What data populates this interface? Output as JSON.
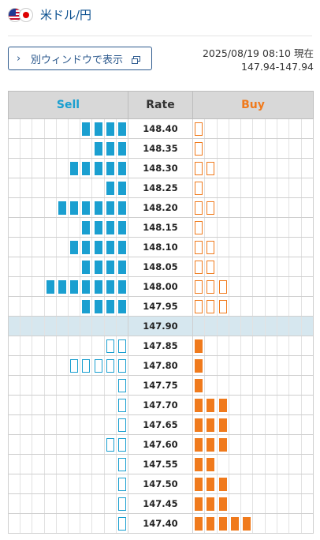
{
  "header": {
    "pair": "米ドル/円"
  },
  "toolbar": {
    "window_button_label": "別ウィンドウで表示"
  },
  "quote": {
    "timestamp": "2025/08/19 08:10 現在",
    "range": "147.94-147.94"
  },
  "columns": {
    "sell": "Sell",
    "rate": "Rate",
    "buy": "Buy"
  },
  "colors": {
    "sell": "#1a9fd0",
    "buy": "#f07a1c",
    "current_row": "#d6e7ef"
  },
  "current_rate": "147.90",
  "rows": [
    {
      "rate": "148.40",
      "sell": 4,
      "sell_type": "fill",
      "buy": 1,
      "buy_type": "empty"
    },
    {
      "rate": "148.35",
      "sell": 3,
      "sell_type": "fill",
      "buy": 1,
      "buy_type": "empty"
    },
    {
      "rate": "148.30",
      "sell": 5,
      "sell_type": "fill",
      "buy": 2,
      "buy_type": "empty"
    },
    {
      "rate": "148.25",
      "sell": 2,
      "sell_type": "fill",
      "buy": 1,
      "buy_type": "empty"
    },
    {
      "rate": "148.20",
      "sell": 6,
      "sell_type": "fill",
      "buy": 2,
      "buy_type": "empty"
    },
    {
      "rate": "148.15",
      "sell": 4,
      "sell_type": "fill",
      "buy": 1,
      "buy_type": "empty"
    },
    {
      "rate": "148.10",
      "sell": 5,
      "sell_type": "fill",
      "buy": 2,
      "buy_type": "empty"
    },
    {
      "rate": "148.05",
      "sell": 4,
      "sell_type": "fill",
      "buy": 2,
      "buy_type": "empty"
    },
    {
      "rate": "148.00",
      "sell": 7,
      "sell_type": "fill",
      "buy": 3,
      "buy_type": "empty"
    },
    {
      "rate": "147.95",
      "sell": 4,
      "sell_type": "fill",
      "buy": 3,
      "buy_type": "empty"
    },
    {
      "rate": "147.90",
      "sell": 0,
      "sell_type": "fill",
      "buy": 0,
      "buy_type": "fill"
    },
    {
      "rate": "147.85",
      "sell": 2,
      "sell_type": "empty",
      "buy": 1,
      "buy_type": "fill"
    },
    {
      "rate": "147.80",
      "sell": 5,
      "sell_type": "empty",
      "buy": 1,
      "buy_type": "fill"
    },
    {
      "rate": "147.75",
      "sell": 1,
      "sell_type": "empty",
      "buy": 1,
      "buy_type": "fill"
    },
    {
      "rate": "147.70",
      "sell": 1,
      "sell_type": "empty",
      "buy": 3,
      "buy_type": "fill"
    },
    {
      "rate": "147.65",
      "sell": 1,
      "sell_type": "empty",
      "buy": 3,
      "buy_type": "fill"
    },
    {
      "rate": "147.60",
      "sell": 2,
      "sell_type": "empty",
      "buy": 3,
      "buy_type": "fill"
    },
    {
      "rate": "147.55",
      "sell": 1,
      "sell_type": "empty",
      "buy": 2,
      "buy_type": "fill"
    },
    {
      "rate": "147.50",
      "sell": 1,
      "sell_type": "empty",
      "buy": 3,
      "buy_type": "fill"
    },
    {
      "rate": "147.45",
      "sell": 1,
      "sell_type": "empty",
      "buy": 3,
      "buy_type": "fill"
    },
    {
      "rate": "147.40",
      "sell": 1,
      "sell_type": "empty",
      "buy": 5,
      "buy_type": "fill"
    }
  ]
}
